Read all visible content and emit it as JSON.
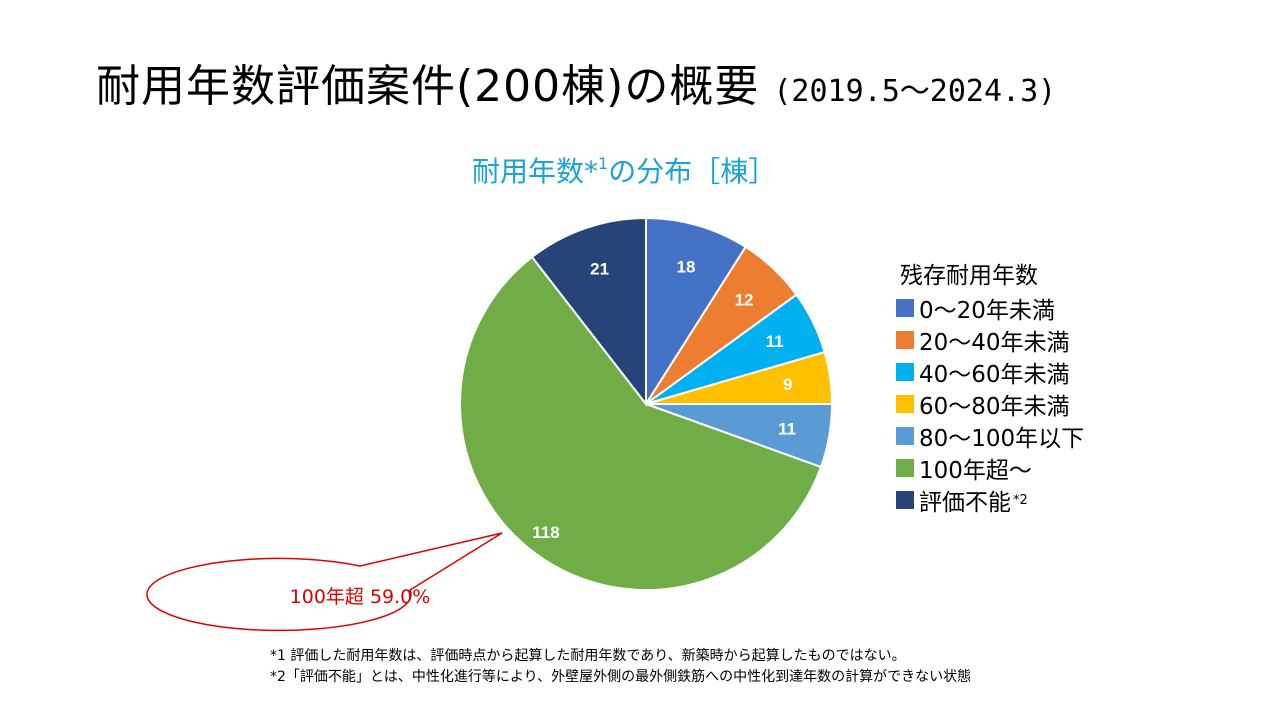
{
  "title": {
    "main": "耐用年数評価案件(200棟)の概要",
    "period": "(2019.5～2024.3)"
  },
  "chart_data": {
    "type": "pie",
    "title": "耐用年数*¹の分布［棟］",
    "title_main": "耐用年数*",
    "title_sup": "1",
    "title_rest": "の分布［棟］",
    "legend_title": "残存耐用年数",
    "total": 200,
    "categories": [
      "0～20年未満",
      "20～40年未満",
      "40～60年未満",
      "60～80年未満",
      "80～100年以下",
      "100年超～",
      "評価不能"
    ],
    "values": [
      18,
      12,
      11,
      9,
      11,
      118,
      21
    ],
    "colors": [
      "#4472c4",
      "#ed7d31",
      "#00b0f0",
      "#ffc000",
      "#5b9bd5",
      "#70ad47",
      "#264478"
    ],
    "legend_sup": [
      "",
      "",
      "",
      "",
      "",
      "",
      "*2"
    ],
    "annotation": "100年超 59.0%"
  },
  "footnotes": [
    "*1 評価した耐用年数は、評価時点から起算した耐用年数であり、新築時から起算したものではない。",
    "*2「評価不能」とは、中性化進行等により、外壁屋外側の最外側鉄筋への中性化到達年数の計算ができない状態"
  ]
}
